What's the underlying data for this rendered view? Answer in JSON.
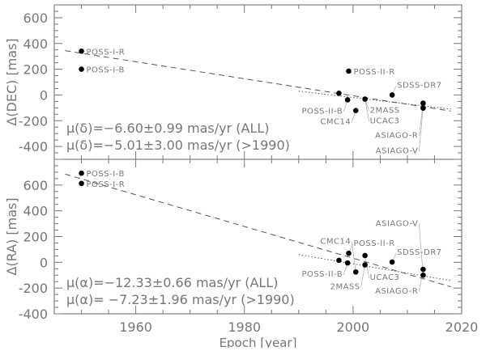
{
  "chart_data": [
    {
      "type": "scatter",
      "ylabel": "Δ(DEC) [mas]",
      "xlim": [
        1945,
        2020
      ],
      "ylim": [
        -500,
        700
      ],
      "yticks": [
        -400,
        -200,
        0,
        200,
        400,
        600
      ],
      "points": [
        {
          "x": 1950,
          "y": 340,
          "label": "POSS-I-R"
        },
        {
          "x": 1950,
          "y": 200,
          "label": "POSS-I-B"
        },
        {
          "x": 1999.2,
          "y": 185,
          "label": "POSS-II-R"
        },
        {
          "x": 1997.4,
          "y": 13,
          "label": ""
        },
        {
          "x": 1999,
          "y": -38,
          "label": "POSS-II-B"
        },
        {
          "x": 2002.2,
          "y": -32,
          "label": "2MASS"
        },
        {
          "x": 2002.2,
          "y": -32,
          "label": "UCAC3"
        },
        {
          "x": 2000.5,
          "y": -121,
          "label": "CMC14"
        },
        {
          "x": 2007.2,
          "y": 0,
          "label": "SDSS-DR7"
        },
        {
          "x": 2012.9,
          "y": -64,
          "label": "ASIAGO-R"
        },
        {
          "x": 2012.9,
          "y": -102,
          "label": "ASIAGO-V"
        }
      ],
      "fits": [
        {
          "style": "dashed",
          "x": [
            1947,
            2018
          ],
          "y": [
            344,
            -125
          ]
        },
        {
          "style": "dotted",
          "x": [
            1990,
            2018
          ],
          "y": [
            30,
            -110
          ]
        }
      ],
      "annotations": [
        "μ(δ)=−6.60±0.99 mas/yr (ALL)",
        "μ(δ)=−5.01±3.00 mas/yr (>1990)"
      ]
    },
    {
      "type": "scatter",
      "xlabel": "Epoch [year]",
      "ylabel": "Δ(RA) [mas]",
      "xlim": [
        1945,
        2020
      ],
      "ylim": [
        -400,
        800
      ],
      "xticks": [
        1960,
        1980,
        2000,
        2020
      ],
      "yticks": [
        -400,
        -200,
        0,
        200,
        400,
        600
      ],
      "points": [
        {
          "x": 1950,
          "y": 692,
          "label": "POSS-I-B"
        },
        {
          "x": 1950,
          "y": 613,
          "label": "POSS-I-R"
        },
        {
          "x": 1999.2,
          "y": 70,
          "label": "POSS-II-R"
        },
        {
          "x": 2002.2,
          "y": 53,
          "label": "UCAC3"
        },
        {
          "x": 1997.4,
          "y": 15,
          "label": ""
        },
        {
          "x": 1999,
          "y": -5,
          "label": "POSS-II-B"
        },
        {
          "x": 2002.2,
          "y": -20,
          "label": "2MASS"
        },
        {
          "x": 2000.5,
          "y": -75,
          "label": "CMC14"
        },
        {
          "x": 2007.2,
          "y": 2,
          "label": "SDSS-DR7"
        },
        {
          "x": 2012.9,
          "y": -55,
          "label": "ASIAGO-R"
        },
        {
          "x": 2012.9,
          "y": -100,
          "label": "ASIAGO-V"
        }
      ],
      "fits": [
        {
          "style": "dashed",
          "x": [
            1947,
            2018
          ],
          "y": [
            685,
            -190
          ]
        },
        {
          "style": "dotted",
          "x": [
            1990,
            2018
          ],
          "y": [
            60,
            -142
          ]
        }
      ],
      "annotations": [
        "μ(α)=−12.33±0.66 mas/yr (ALL)",
        "μ(α)= −7.23±1.96 mas/yr (>1990)"
      ]
    }
  ]
}
